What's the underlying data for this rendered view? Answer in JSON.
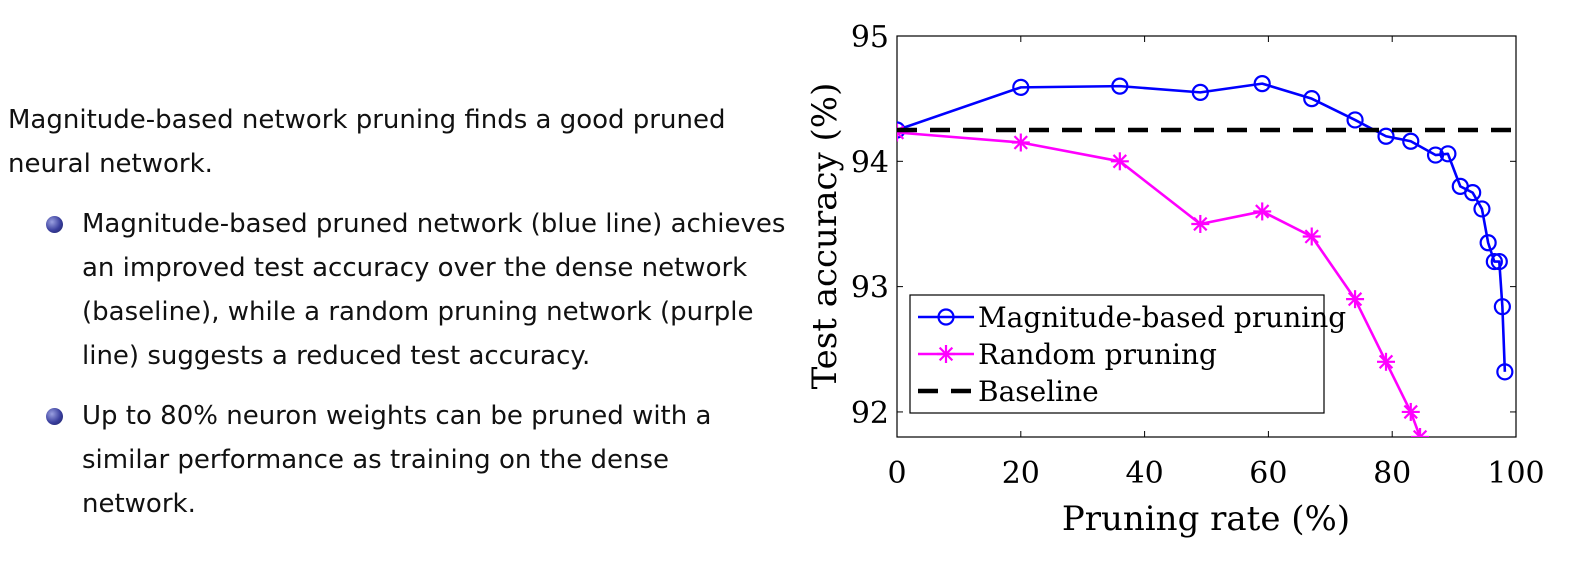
{
  "text": {
    "intro": "Magnitude-based network pruning finds a good pruned neural network.",
    "bullets": [
      "Magnitude-based pruned network (blue line) achieves an improved test accuracy over the dense network (baseline), while a random pruning network (purple line) suggests a reduced test accuracy.",
      "Up to 80% neuron weights can be pruned with a similar performance as training on the dense network."
    ]
  },
  "chart_data": {
    "type": "line",
    "xlabel": "Pruning rate (%)",
    "ylabel": "Test accuracy (%)",
    "xlim": [
      0,
      100
    ],
    "ylim": [
      91.8,
      95
    ],
    "xticks": [
      "0",
      "20",
      "40",
      "60",
      "80",
      "100"
    ],
    "yticks": [
      "92",
      "93",
      "94",
      "95"
    ],
    "grid": false,
    "legend_position": "bottom-left",
    "series": [
      {
        "name": "Magnitude-based pruning",
        "color": "#0000ff",
        "marker": "circle",
        "x": [
          0,
          20,
          36,
          49,
          59,
          67,
          74,
          79,
          83,
          87,
          89,
          91,
          93,
          94.5,
          95.5,
          96.5,
          97.3,
          97.8,
          98.2
        ],
        "y": [
          94.25,
          94.59,
          94.6,
          94.55,
          94.62,
          94.5,
          94.33,
          94.2,
          94.16,
          94.05,
          94.06,
          93.8,
          93.75,
          93.62,
          93.35,
          93.2,
          93.2,
          92.84,
          92.32
        ]
      },
      {
        "name": "Random pruning",
        "color": "#ff00ff",
        "marker": "asterisk",
        "x": [
          0,
          20,
          36,
          49,
          59,
          67,
          74,
          79,
          83,
          84.5
        ],
        "y": [
          94.23,
          94.15,
          94.0,
          93.5,
          93.6,
          93.4,
          92.9,
          92.4,
          92.0,
          91.8
        ]
      },
      {
        "name": "Baseline",
        "color": "#000000",
        "marker": "none",
        "dashed": true,
        "x": [
          0,
          100
        ],
        "y": [
          94.25,
          94.25
        ]
      }
    ]
  }
}
